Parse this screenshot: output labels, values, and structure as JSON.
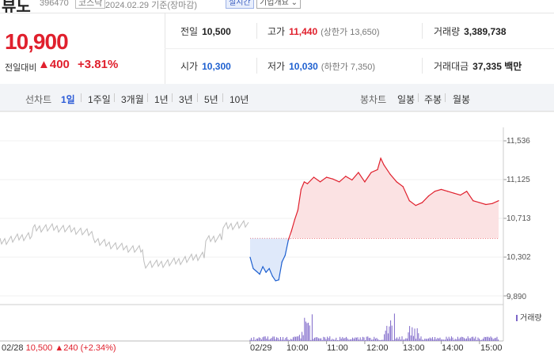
{
  "header": {
    "name": "뷰노",
    "code": "396470",
    "market": "코스닥",
    "date": "2024.02.29 기준(장마감)",
    "realtime_label": "실시간",
    "company_info_label": "기업개요"
  },
  "quote": {
    "price": "10,900",
    "change_label": "전일대비",
    "change_arrow": "▲",
    "change": "400",
    "change_pct": "+3.81%",
    "prev_close_label": "전일",
    "prev_close": "10,500",
    "high_label": "고가",
    "high": "11,440",
    "upper_limit": "(상한가 13,650)",
    "volume_label": "거래량",
    "volume": "3,389,738",
    "open_label": "시가",
    "open": "10,300",
    "low_label": "저가",
    "low": "10,030",
    "lower_limit": "(하한가 7,350)",
    "amount_label": "거래대금",
    "amount": "37,335",
    "amount_unit": "백만"
  },
  "period_bar": {
    "line_label": "선차트",
    "periods": [
      "1일",
      "1주일",
      "3개월",
      "1년",
      "3년",
      "5년",
      "10년"
    ],
    "active_period": "1일",
    "candle_label": "봉차트",
    "candles": [
      "일봉",
      "주봉",
      "월봉"
    ]
  },
  "chart_data": {
    "type": "line",
    "title": "",
    "y_ticks": [
      "11,536",
      "11,125",
      "10,713",
      "10,302",
      "9,890"
    ],
    "ylim": [
      9890,
      11536
    ],
    "baseline": 10500,
    "x_ticks": [
      "02/29",
      "10:00",
      "11:00",
      "12:00",
      "13:00",
      "14:00",
      "15:00"
    ],
    "prev_day_label": "02/28",
    "prev_day_close": "10,500",
    "prev_day_change": "▲240",
    "prev_day_pct": "(+2.34%)",
    "volume_legend": "거래량",
    "colors": {
      "up": "#e0202d",
      "down": "#1e60d0",
      "prev": "#bdbdbd",
      "volume": "#7d66c9"
    },
    "series": [
      {
        "name": "",
        "x": [
          "09:00",
          "09:05",
          "09:10",
          "09:15",
          "09:20",
          "09:25",
          "09:30",
          "09:35",
          "09:40",
          "09:45",
          "09:50",
          "09:55",
          "10:00",
          "10:05",
          "10:10",
          "10:15",
          "10:20",
          "10:25",
          "10:30",
          "10:40",
          "10:50",
          "11:00",
          "11:10",
          "11:20",
          "11:30",
          "11:40",
          "11:50",
          "12:00",
          "12:10",
          "12:20",
          "12:25",
          "12:30",
          "12:40",
          "12:50",
          "13:00",
          "13:10",
          "13:20",
          "13:30",
          "13:40",
          "13:50",
          "14:00",
          "14:10",
          "14:20",
          "14:30",
          "14:40",
          "14:50",
          "15:00",
          "15:10",
          "15:20",
          "15:30"
        ],
        "values": [
          10300,
          10180,
          10150,
          10120,
          10200,
          10140,
          10180,
          10100,
          10050,
          10060,
          10250,
          10320,
          10480,
          10580,
          10700,
          10800,
          11020,
          11100,
          11080,
          11150,
          11100,
          11150,
          11130,
          11100,
          11160,
          11120,
          11200,
          11100,
          11200,
          11230,
          11350,
          11280,
          11180,
          11100,
          11050,
          10900,
          10850,
          10880,
          10950,
          11000,
          11020,
          11000,
          10980,
          10960,
          11000,
          10900,
          10880,
          10860,
          10870,
          10900
        ]
      }
    ]
  }
}
